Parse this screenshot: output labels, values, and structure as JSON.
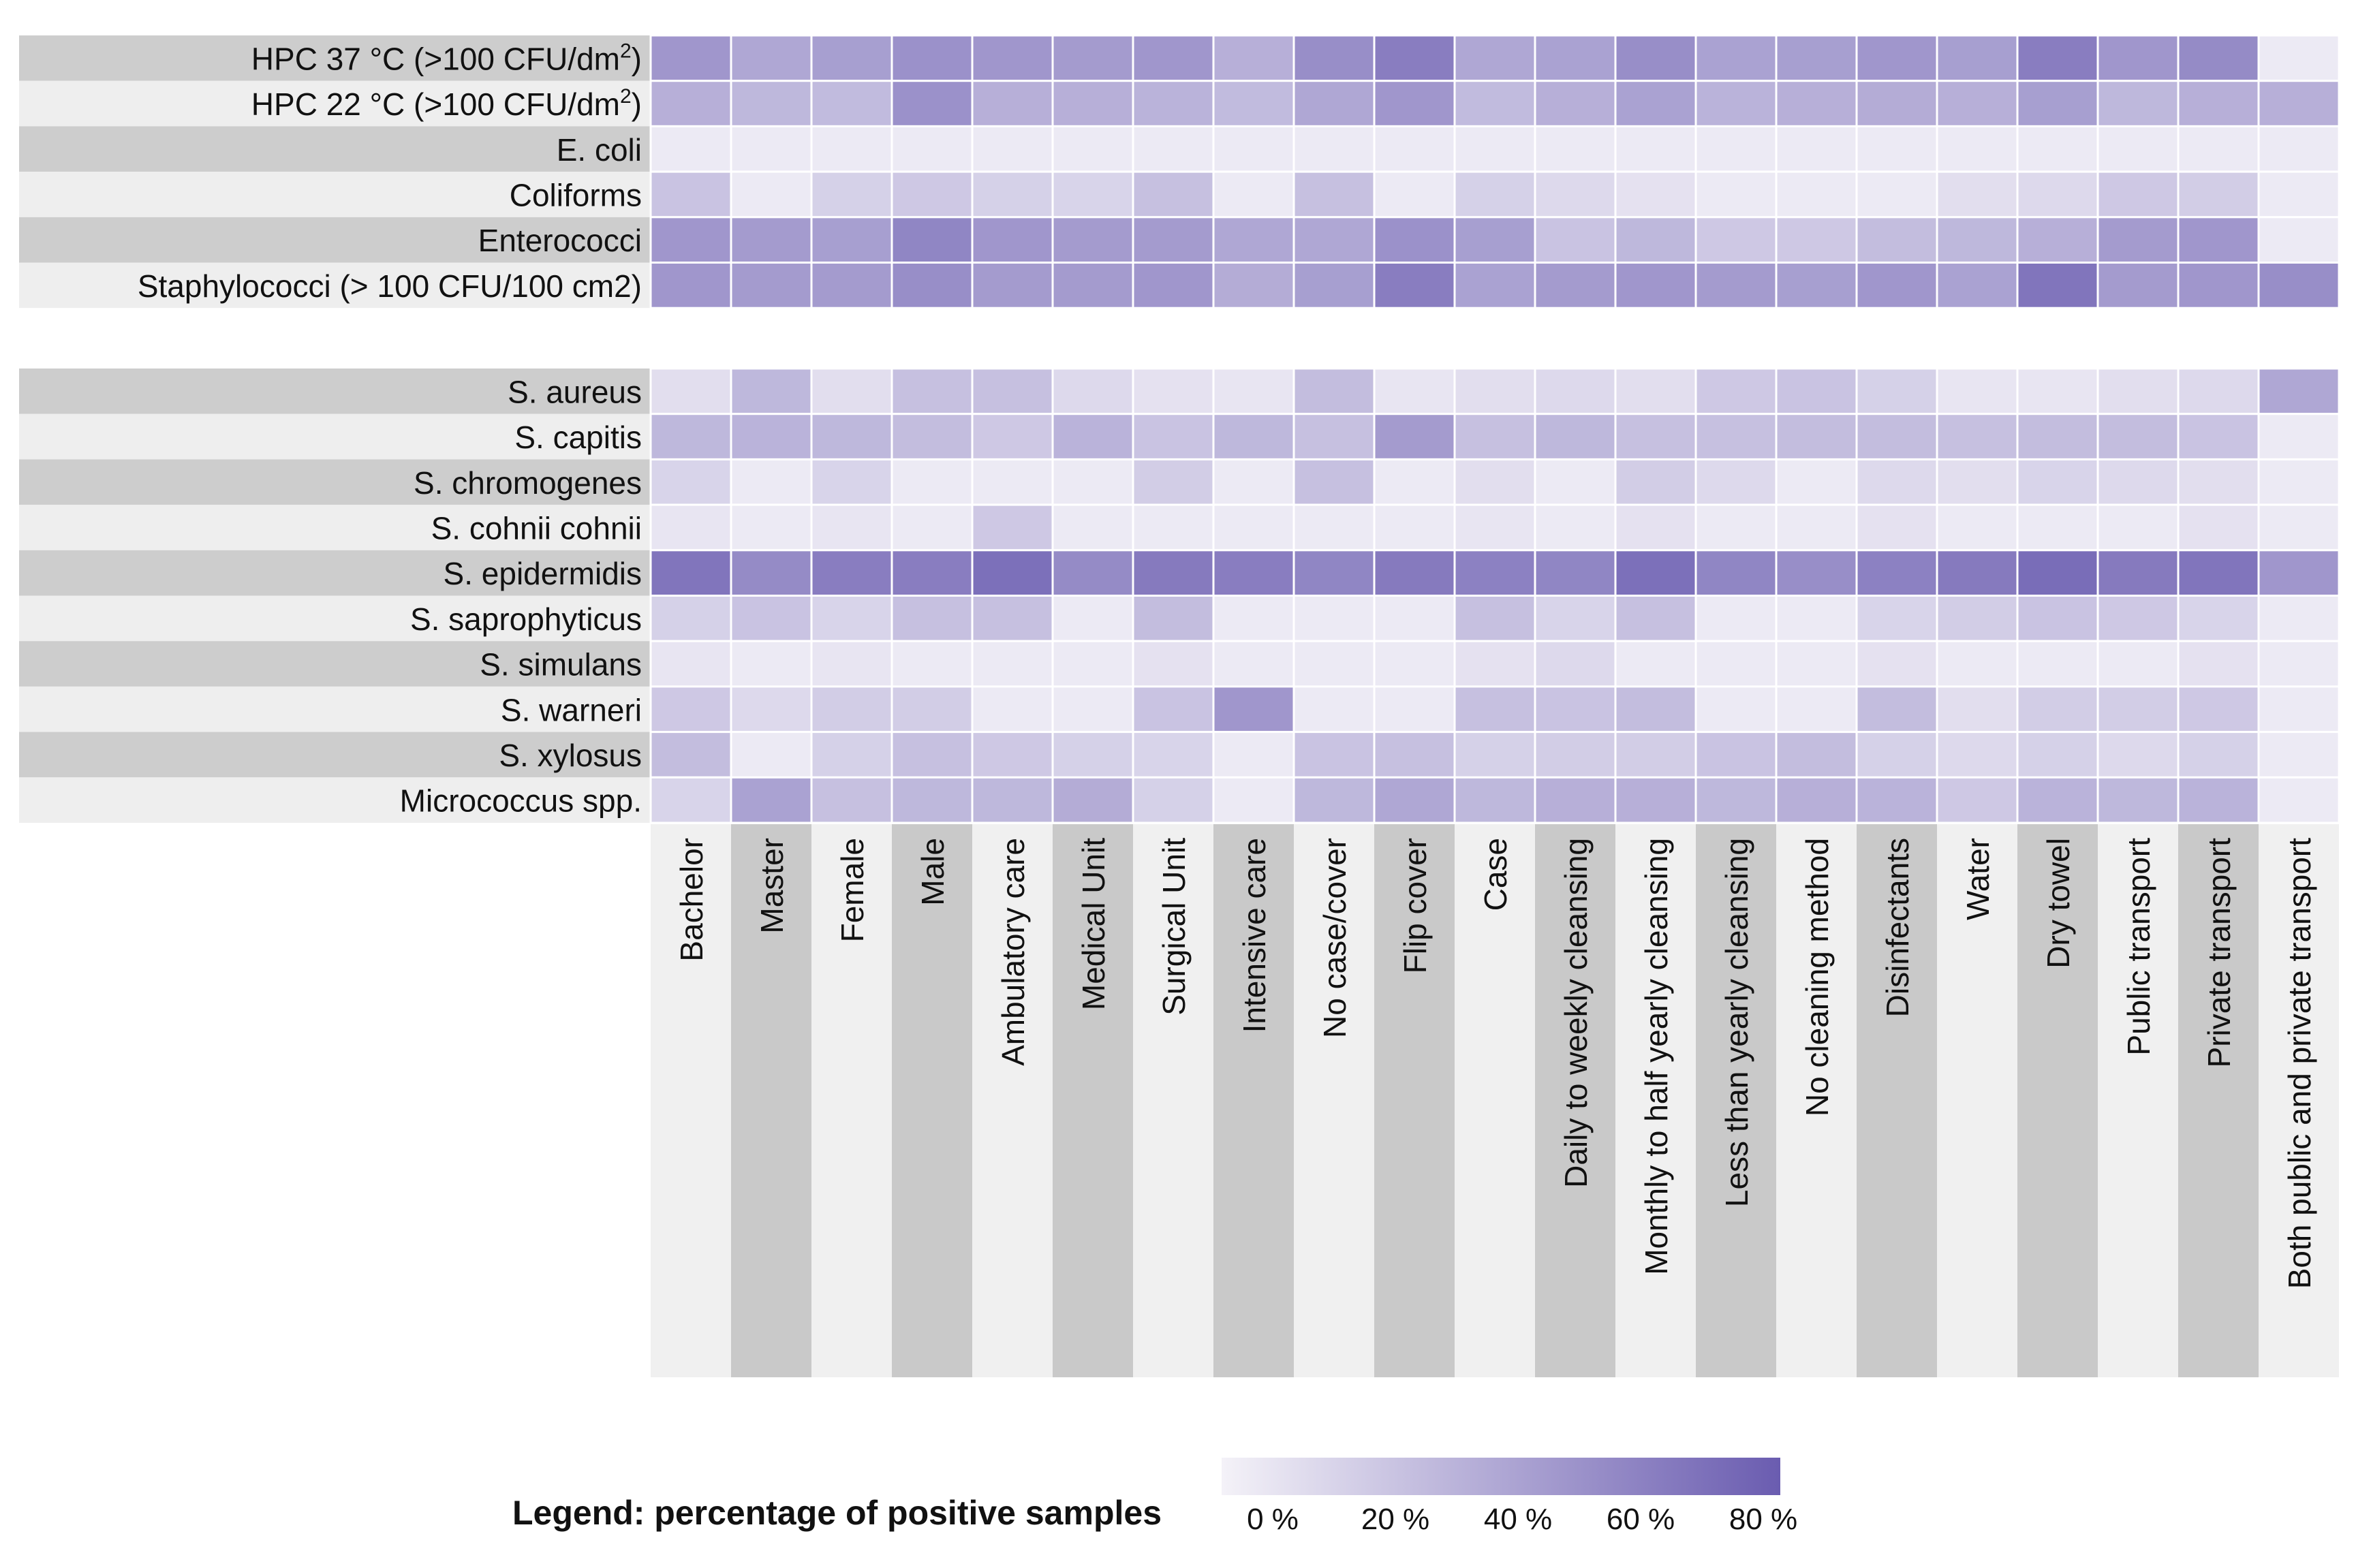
{
  "chart_data": {
    "type": "heatmap",
    "title": "",
    "rows": [
      {
        "label": "HPC 37 °C (>100 CFU/dm",
        "sup": "2",
        "tail": ")",
        "group": 1,
        "values": [
          55,
          45,
          50,
          58,
          55,
          52,
          55,
          40,
          60,
          70,
          45,
          48,
          60,
          48,
          50,
          55,
          50,
          70,
          55,
          62,
          5
        ]
      },
      {
        "label": "HPC 22 °C (>100 CFU/dm",
        "sup": "2",
        "tail": ")",
        "group": 1,
        "values": [
          40,
          35,
          33,
          58,
          40,
          40,
          38,
          33,
          45,
          55,
          33,
          40,
          48,
          38,
          40,
          42,
          40,
          50,
          35,
          40,
          40
        ]
      },
      {
        "label": "E. coli",
        "group": 1,
        "values": [
          5,
          5,
          5,
          5,
          5,
          5,
          5,
          5,
          5,
          5,
          5,
          5,
          5,
          5,
          5,
          5,
          5,
          5,
          5,
          5,
          5
        ]
      },
      {
        "label": "Coliforms",
        "group": 1,
        "values": [
          28,
          5,
          20,
          25,
          20,
          18,
          30,
          5,
          30,
          5,
          20,
          15,
          10,
          5,
          5,
          5,
          12,
          15,
          25,
          22,
          5
        ]
      },
      {
        "label": "Enterococci",
        "group": 1,
        "values": [
          55,
          52,
          50,
          65,
          55,
          52,
          52,
          45,
          45,
          58,
          50,
          28,
          35,
          25,
          25,
          32,
          35,
          40,
          52,
          55,
          5
        ]
      },
      {
        "label": "Staphylococci (> 100 CFU/100 cm2)",
        "group": 1,
        "values": [
          55,
          52,
          52,
          60,
          52,
          52,
          55,
          42,
          50,
          70,
          48,
          52,
          55,
          52,
          50,
          55,
          48,
          75,
          52,
          55,
          60
        ]
      },
      {
        "label": "S. aureus",
        "group": 2,
        "values": [
          12,
          35,
          12,
          30,
          30,
          15,
          10,
          8,
          32,
          8,
          12,
          15,
          12,
          25,
          28,
          20,
          8,
          8,
          12,
          15,
          45
        ]
      },
      {
        "label": "S. capitis",
        "group": 2,
        "values": [
          35,
          38,
          35,
          32,
          25,
          38,
          28,
          35,
          30,
          52,
          30,
          35,
          30,
          30,
          32,
          32,
          30,
          32,
          32,
          28,
          5
        ]
      },
      {
        "label": "S. chromogenes",
        "group": 2,
        "values": [
          18,
          5,
          18,
          5,
          5,
          5,
          22,
          5,
          30,
          5,
          12,
          5,
          22,
          15,
          5,
          15,
          12,
          18,
          15,
          12,
          5
        ]
      },
      {
        "label": "S. cohnii cohnii",
        "group": 2,
        "values": [
          8,
          5,
          8,
          5,
          25,
          5,
          5,
          5,
          5,
          5,
          8,
          5,
          10,
          5,
          5,
          10,
          5,
          5,
          5,
          10,
          5
        ]
      },
      {
        "label": "S. epidermidis",
        "group": 2,
        "values": [
          75,
          62,
          70,
          70,
          78,
          62,
          72,
          70,
          65,
          72,
          68,
          65,
          78,
          65,
          60,
          68,
          72,
          80,
          72,
          75,
          55
        ]
      },
      {
        "label": "S. saprophyticus",
        "group": 2,
        "values": [
          20,
          28,
          18,
          30,
          30,
          5,
          32,
          5,
          5,
          5,
          30,
          18,
          30,
          5,
          5,
          18,
          22,
          28,
          25,
          18,
          5
        ]
      },
      {
        "label": "S. simulans",
        "group": 2,
        "values": [
          8,
          5,
          8,
          5,
          5,
          5,
          10,
          5,
          5,
          5,
          10,
          15,
          5,
          5,
          5,
          10,
          5,
          5,
          5,
          10,
          5
        ]
      },
      {
        "label": "S. warneri",
        "group": 2,
        "values": [
          25,
          15,
          22,
          22,
          5,
          5,
          28,
          55,
          5,
          5,
          30,
          28,
          32,
          5,
          5,
          32,
          12,
          22,
          22,
          25,
          5
        ]
      },
      {
        "label": "S. xylosus",
        "group": 2,
        "values": [
          32,
          5,
          20,
          30,
          25,
          20,
          18,
          5,
          28,
          30,
          20,
          22,
          22,
          28,
          32,
          20,
          15,
          20,
          15,
          20,
          5
        ]
      },
      {
        "label": "Micrococcus spp.",
        "group": 2,
        "values": [
          18,
          48,
          30,
          35,
          35,
          42,
          20,
          5,
          35,
          45,
          35,
          40,
          40,
          35,
          40,
          38,
          25,
          38,
          35,
          38,
          5
        ]
      }
    ],
    "columns": [
      "Bachelor",
      "Master",
      "Female",
      "Male",
      "Ambulatory care",
      "Medical Unit",
      "Surgical Unit",
      "Intensive care",
      "No case/cover",
      "Flip cover",
      "Case",
      "Daily to weekly cleansing",
      "Monthly to half yearly cleansing",
      "Less than yearly cleansing",
      "No cleaning method",
      "Disinfectants",
      "Water",
      "Dry towel",
      "Public transport",
      "Private transport",
      "Both public and private transport"
    ],
    "value_unit": "% positive samples",
    "color_range": [
      0,
      90
    ],
    "colors": {
      "low": "#f4f2f8",
      "high": "#6a5cb0"
    },
    "legend": {
      "title": "Legend: percentage of positive samples",
      "ticks": [
        "0 %",
        "20 %",
        "40 %",
        "60 %",
        "80 %"
      ],
      "tick_values": [
        0,
        20,
        40,
        60,
        80
      ]
    }
  }
}
